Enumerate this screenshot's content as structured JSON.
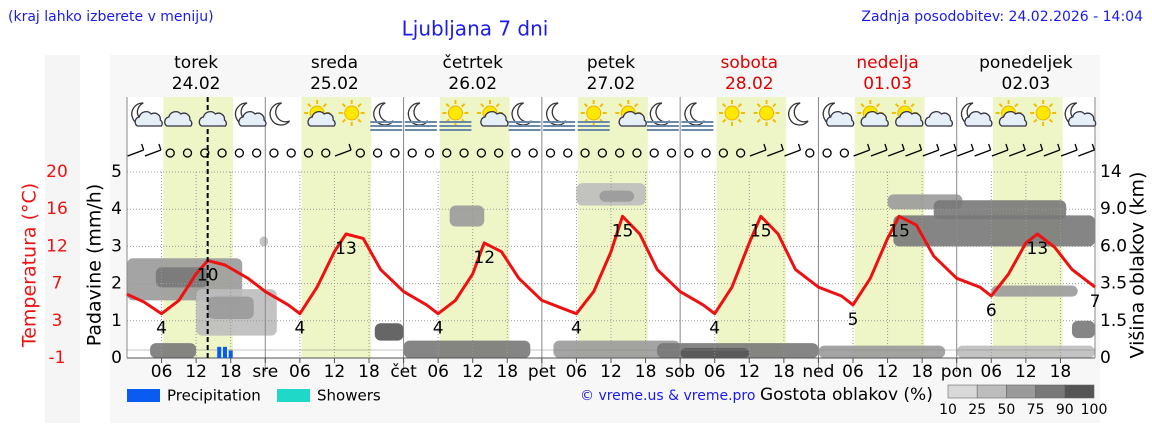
{
  "header": {
    "note": "(kraj lahko izberete v meniju)",
    "title": "Ljubljana 7 dni",
    "updated": "Zadnja posodobitev: 24.02.2026 - 14:04"
  },
  "chart_data": {
    "type": "line",
    "days": [
      {
        "name": "torek",
        "date": "24.02",
        "color": "#000000"
      },
      {
        "name": "sreda",
        "date": "25.02",
        "color": "#000000"
      },
      {
        "name": "četrtek",
        "date": "26.02",
        "color": "#000000"
      },
      {
        "name": "petek",
        "date": "27.02",
        "color": "#000000"
      },
      {
        "name": "sobota",
        "date": "28.02",
        "color": "#e00000"
      },
      {
        "name": "nedelja",
        "date": "01.03",
        "color": "#e00000"
      },
      {
        "name": "ponedeljek",
        "date": "02.03",
        "color": "#000000"
      }
    ],
    "xlim": [
      0,
      168
    ],
    "xticks": [
      {
        "value": 6,
        "label": "06"
      },
      12,
      18,
      {
        "value": 24,
        "label": "sre"
      },
      {
        "value": 30,
        "label": "06"
      },
      {
        "value": 36,
        "label": "12"
      },
      {
        "value": 42,
        "label": "18"
      },
      {
        "value": 48,
        "label": "čet"
      },
      {
        "value": 54,
        "label": "06"
      },
      {
        "value": 60,
        "label": "12"
      },
      {
        "value": 66,
        "label": "18"
      },
      {
        "value": 72,
        "label": "pet"
      },
      {
        "value": 78,
        "label": "06"
      },
      {
        "value": 84,
        "label": "12"
      },
      {
        "value": 90,
        "label": "18"
      },
      {
        "value": 96,
        "label": "sob"
      },
      {
        "value": 102,
        "label": "06"
      },
      {
        "value": 108,
        "label": "12"
      },
      {
        "value": 114,
        "label": "18"
      },
      {
        "value": 120,
        "label": "ned"
      },
      {
        "value": 126,
        "label": "06"
      },
      {
        "value": 132,
        "label": "12"
      },
      {
        "value": 138,
        "label": "18"
      },
      {
        "value": 144,
        "label": "pon"
      },
      {
        "value": 150,
        "label": "06"
      },
      {
        "value": 156,
        "label": "12"
      },
      {
        "value": 162,
        "label": "18"
      }
    ],
    "daylight": [
      6.3,
      18.4
    ],
    "now_x": 14,
    "grid": true,
    "temperature": {
      "axis_label": "Temperatura (°C)",
      "color": "#ee1111",
      "ylim": [
        -1,
        20
      ],
      "yticks": [
        -1,
        {
          "value": 3.2,
          "label": "3"
        },
        {
          "value": 7.4,
          "label": "7"
        },
        {
          "value": 11.6,
          "label": "12"
        },
        {
          "value": 15.8,
          "label": "16"
        },
        20
      ],
      "x": [
        0,
        3,
        6,
        9,
        12,
        14,
        17,
        21,
        24,
        28,
        30,
        33,
        36,
        38,
        41,
        44,
        48,
        52,
        54,
        57,
        60,
        62,
        65,
        68,
        72,
        76,
        78,
        81,
        84,
        86,
        89,
        92,
        96,
        100,
        102,
        105,
        108,
        110,
        113,
        116,
        120,
        124,
        126,
        129,
        132,
        134,
        137,
        140,
        144,
        148,
        150,
        153,
        156,
        158,
        161,
        164,
        168
      ],
      "values": [
        6.2,
        5.3,
        4,
        5.5,
        8.5,
        10,
        9.5,
        8,
        6.5,
        5,
        4,
        7,
        11,
        13,
        12.5,
        9,
        6.5,
        5,
        4,
        5.5,
        8.5,
        12,
        11,
        8,
        5.5,
        4.5,
        4,
        6.5,
        11,
        15,
        13,
        9,
        6.5,
        5,
        4,
        7,
        12,
        15,
        13,
        9,
        7,
        6,
        5,
        8,
        12.5,
        15,
        14,
        10.5,
        8,
        7,
        6,
        8.5,
        12,
        13,
        11.5,
        9,
        7
      ],
      "value_labels": [
        null,
        null,
        "4",
        null,
        null,
        "10",
        null,
        null,
        null,
        null,
        "4",
        null,
        null,
        "13",
        null,
        null,
        null,
        null,
        "4",
        null,
        null,
        "12",
        null,
        null,
        null,
        null,
        "4",
        null,
        null,
        "15",
        null,
        null,
        null,
        null,
        "4",
        null,
        null,
        "15",
        null,
        null,
        null,
        null,
        "5",
        null,
        null,
        "15",
        null,
        null,
        null,
        null,
        "6",
        null,
        null,
        "13",
        null,
        null,
        "7"
      ]
    },
    "precipitation": {
      "axis_label": "Padavine (mm/h)",
      "ylim": [
        0,
        5
      ],
      "yticks": [
        0,
        1,
        2,
        3,
        4,
        5
      ],
      "series": [
        {
          "name": "Precipitation",
          "color": "#0a5cf0",
          "x": [
            16,
            17,
            18
          ],
          "values": [
            0.3,
            0.3,
            0.2
          ]
        },
        {
          "name": "Showers",
          "color": "#20d8c8",
          "x": [],
          "values": []
        }
      ]
    },
    "clouds": {
      "axis_label": "Višina oblakov (km)",
      "y2lim": [
        0,
        14
      ],
      "y2ticks": [
        0,
        1.5,
        3.5,
        {
          "value": 6,
          "label": "6.0"
        },
        {
          "value": 9,
          "label": "9.0"
        },
        14
      ],
      "legend_title": "Gostota oblakov (%)",
      "levels": [
        10,
        25,
        50,
        75,
        90,
        100
      ],
      "colors": [
        "#d8d8d8",
        "#bcbcbc",
        "#9a9a9a",
        "#787878",
        "#555555"
      ],
      "blobs": [
        {
          "x": [
            0,
            20
          ],
          "y": [
            2.6,
            5.2
          ],
          "density": 50
        },
        {
          "x": [
            5,
            14
          ],
          "y": [
            3.3,
            4.6
          ],
          "density": 75
        },
        {
          "x": [
            12,
            26
          ],
          "y": [
            0.9,
            3.2
          ],
          "density": 25
        },
        {
          "x": [
            14,
            22
          ],
          "y": [
            1.6,
            2.8
          ],
          "density": 50
        },
        {
          "x": [
            4,
            12
          ],
          "y": [
            0,
            0.6
          ],
          "density": 75
        },
        {
          "x": [
            23,
            24.5
          ],
          "y": [
            6,
            6.8
          ],
          "density": 25
        },
        {
          "x": [
            43,
            48
          ],
          "y": [
            0.7,
            1.4
          ],
          "density": 90
        },
        {
          "x": [
            48,
            70
          ],
          "y": [
            0,
            0.7
          ],
          "density": 75
        },
        {
          "x": [
            56,
            62
          ],
          "y": [
            7.6,
            9.5
          ],
          "density": 50
        },
        {
          "x": [
            74,
            96
          ],
          "y": [
            0,
            0.7
          ],
          "density": 50
        },
        {
          "x": [
            78,
            90
          ],
          "y": [
            9.5,
            12.5
          ],
          "density": 25
        },
        {
          "x": [
            82,
            88
          ],
          "y": [
            10,
            11.5
          ],
          "density": 50
        },
        {
          "x": [
            92,
            120
          ],
          "y": [
            0,
            0.6
          ],
          "density": 75
        },
        {
          "x": [
            96,
            108
          ],
          "y": [
            0,
            0.4
          ],
          "density": 90
        },
        {
          "x": [
            120,
            142
          ],
          "y": [
            0,
            0.5
          ],
          "density": 50
        },
        {
          "x": [
            132,
            145
          ],
          "y": [
            9,
            11
          ],
          "density": 50
        },
        {
          "x": [
            133,
            168
          ],
          "y": [
            6,
            8.5
          ],
          "density": 75
        },
        {
          "x": [
            140,
            163
          ],
          "y": [
            8.2,
            10.2
          ],
          "density": 75
        },
        {
          "x": [
            150,
            165
          ],
          "y": [
            2.8,
            3.4
          ],
          "density": 50
        },
        {
          "x": [
            144,
            168
          ],
          "y": [
            0,
            0.5
          ],
          "density": 25
        },
        {
          "x": [
            164,
            168
          ],
          "y": [
            0.8,
            1.5
          ],
          "density": 75
        }
      ]
    },
    "copyright": "© vreme.us & vreme.pro"
  }
}
